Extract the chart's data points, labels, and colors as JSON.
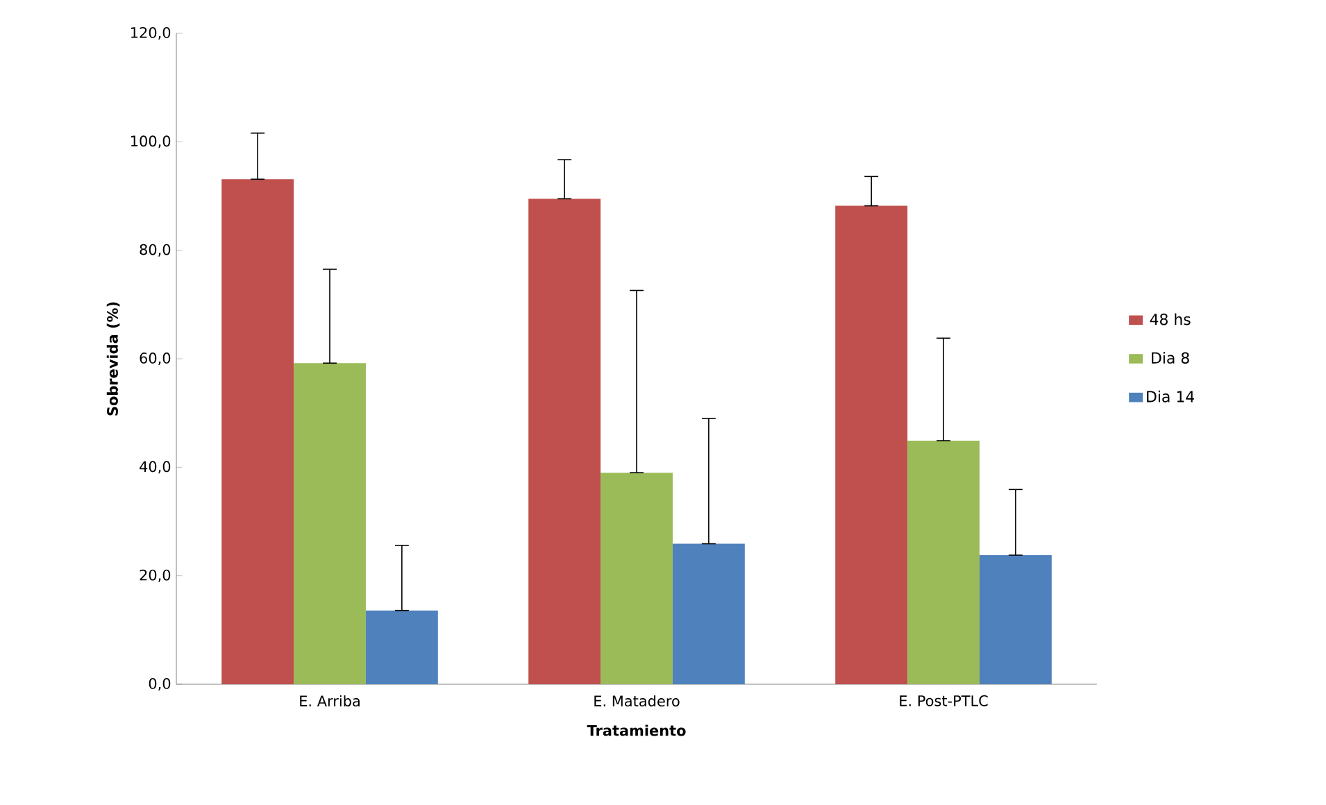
{
  "chart_data": {
    "type": "bar",
    "xlabel": "Tratamiento",
    "ylabel": "Sobrevida (%)",
    "categories": [
      "E. Arriba",
      "E. Matadero",
      "E. Post-PTLC"
    ],
    "series": [
      {
        "name": "48 hs",
        "color": "#c0504d",
        "values": [
          93.1,
          89.5,
          88.2
        ],
        "errors": [
          [
            93.1,
            101.6
          ],
          [
            89.5,
            96.7
          ],
          [
            88.2,
            93.6
          ]
        ]
      },
      {
        "name": "Dia 8",
        "color": "#9bbb59",
        "values": [
          59.2,
          39.0,
          44.9
        ],
        "errors": [
          [
            59.2,
            76.5
          ],
          [
            39.0,
            72.6
          ],
          [
            44.9,
            63.8
          ]
        ]
      },
      {
        "name": "Dia 14",
        "color": "#4f81bd",
        "values": [
          13.6,
          25.9,
          23.8
        ],
        "errors": [
          [
            13.6,
            25.6
          ],
          [
            25.9,
            49.0
          ],
          [
            23.8,
            35.9
          ]
        ]
      }
    ],
    "ylim": [
      0,
      120
    ],
    "yticks": [
      {
        "value": 0,
        "label": "0,0"
      },
      {
        "value": 20,
        "label": "20,0"
      },
      {
        "value": 40,
        "label": "40,0"
      },
      {
        "value": 60,
        "label": "60,0"
      },
      {
        "value": 80,
        "label": "80,0"
      },
      {
        "value": 100,
        "label": "100,0"
      },
      {
        "value": 120,
        "label": "120,0"
      }
    ],
    "legend": "right"
  }
}
